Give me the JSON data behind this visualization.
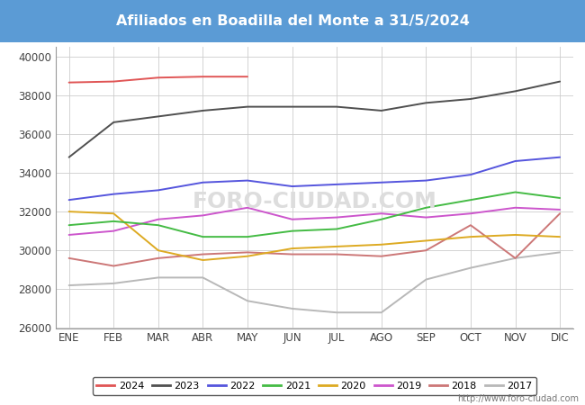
{
  "title": "Afiliados en Boadilla del Monte a 31/5/2024",
  "title_bg_color": "#5b9bd5",
  "title_font_color": "white",
  "ylim": [
    26000,
    40500
  ],
  "yticks": [
    26000,
    28000,
    30000,
    32000,
    34000,
    36000,
    38000,
    40000
  ],
  "months": [
    "ENE",
    "FEB",
    "MAR",
    "ABR",
    "MAY",
    "JUN",
    "JUL",
    "AGO",
    "SEP",
    "OCT",
    "NOV",
    "DIC"
  ],
  "watermark_big": "FORO-CIUDAD.COM",
  "watermark_url": "http://www.foro-ciudad.com",
  "series": {
    "2024": {
      "color": "#e05555",
      "data": [
        38650,
        38700,
        38900,
        38950,
        38950,
        null,
        null,
        null,
        null,
        null,
        null,
        null
      ]
    },
    "2023": {
      "color": "#505050",
      "data": [
        34800,
        36600,
        36900,
        37200,
        37400,
        37400,
        37400,
        37200,
        37600,
        37800,
        38200,
        38700
      ]
    },
    "2022": {
      "color": "#5555dd",
      "data": [
        32600,
        32900,
        33100,
        33500,
        33600,
        33300,
        33400,
        33500,
        33600,
        33900,
        34600,
        34800
      ]
    },
    "2021": {
      "color": "#44bb44",
      "data": [
        31300,
        31500,
        31300,
        30700,
        30700,
        31000,
        31100,
        31600,
        32200,
        32600,
        33000,
        32700
      ]
    },
    "2020": {
      "color": "#ddaa22",
      "data": [
        32000,
        31900,
        30000,
        29500,
        29700,
        30100,
        30200,
        30300,
        30500,
        30700,
        30800,
        30700
      ]
    },
    "2019": {
      "color": "#cc55cc",
      "data": [
        30800,
        31000,
        31600,
        31800,
        32200,
        31600,
        31700,
        31900,
        31700,
        31900,
        32200,
        32100
      ]
    },
    "2018": {
      "color": "#cc7777",
      "data": [
        29600,
        29200,
        29600,
        29800,
        29900,
        29800,
        29800,
        29700,
        30000,
        31300,
        29600,
        31900
      ]
    },
    "2017": {
      "color": "#b8b8b8",
      "data": [
        28200,
        28300,
        28600,
        28600,
        27400,
        27000,
        26800,
        26800,
        28500,
        29100,
        29600,
        29900
      ]
    }
  },
  "years_order": [
    "2024",
    "2023",
    "2022",
    "2021",
    "2020",
    "2019",
    "2018",
    "2017"
  ]
}
